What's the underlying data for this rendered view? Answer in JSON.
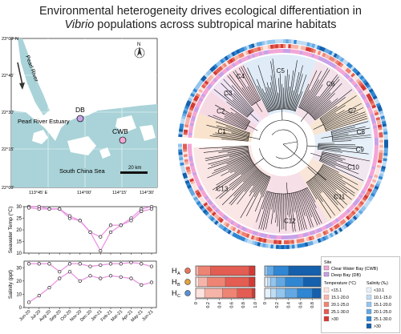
{
  "title": {
    "line1": "Environmental heterogeneity drives ecological differentiation in",
    "line2_italic": "Vibrio",
    "line2_rest": " populations across subtropical marine habitats"
  },
  "map": {
    "river_label": "Pearl River",
    "estuary_label": "Pearl River Estuary",
    "sea_label": "South China Sea",
    "north_label": "N",
    "scale_label": "20 km",
    "lat_labels": [
      "23°00' N",
      "22°45'",
      "22°30'",
      "22°15'",
      "22°00'"
    ],
    "lon_labels": [
      "113°45' E",
      "114°00'",
      "114°15'",
      "114°30'"
    ],
    "sites": [
      {
        "code": "DB",
        "color": "#c8a2e8"
      },
      {
        "code": "CWB",
        "color": "#f3a6d7"
      }
    ]
  },
  "chart_data": [
    {
      "type": "scatter",
      "ylabel": "Seawater Temp (°C)",
      "ylim": [
        10,
        30
      ],
      "yticks": [
        "10",
        "15",
        "20",
        "25",
        "30"
      ],
      "categories": [
        "Jun-20",
        "Jul-20",
        "Aug-20",
        "Sep-20",
        "Oct-20",
        "Nov-20",
        "Dec-20",
        "Jan-21",
        "Feb-21",
        "Mar-21",
        "Apr-21",
        "May-21",
        "Jun-21"
      ],
      "series": [
        {
          "values": [
            30,
            30,
            29,
            29,
            25,
            24,
            19,
            17,
            22,
            22,
            25,
            29,
            30
          ]
        },
        {
          "values": [
            29.5,
            29,
            29,
            29,
            26,
            24,
            19,
            11,
            19,
            22,
            24,
            28,
            29
          ]
        }
      ],
      "line_color": "#e98be0"
    },
    {
      "type": "scatter",
      "ylabel": "Salinity (ppt)",
      "ylim": [
        0,
        35
      ],
      "yticks": [
        "0",
        "10",
        "20",
        "30"
      ],
      "categories": [
        "Jun-20",
        "Jul-20",
        "Aug-20",
        "Sep-20",
        "Oct-20",
        "Nov-20",
        "Dec-20",
        "Jan-21",
        "Feb-21",
        "Mar-21",
        "Apr-21",
        "May-21",
        "Jun-21"
      ],
      "series": [
        {
          "values": [
            33,
            33,
            33,
            27,
            33,
            33,
            31,
            32,
            33,
            33,
            34,
            33,
            31
          ]
        },
        {
          "values": [
            4,
            9,
            15,
            22,
            27,
            20,
            24,
            22,
            24,
            23,
            22,
            17,
            19
          ]
        }
      ],
      "line_color": "#e98be0"
    },
    {
      "type": "bar",
      "categories": [
        "HA",
        "HB",
        "HC"
      ],
      "category_subscripts": [
        "A",
        "B",
        "C"
      ],
      "category_colors": [
        "#e8765a",
        "#e3a23b",
        "#5b8fd6"
      ],
      "xticks": [
        "0",
        "0.2",
        "0.4",
        "0.6",
        "0.8",
        "1.0"
      ],
      "temperature": {
        "classes": [
          "<15.1",
          "15.1-20.0",
          "20.1-25.0",
          "25.1-30.0",
          ">30"
        ],
        "colors": [
          "#fde3de",
          "#f6b4a8",
          "#ee8474",
          "#e35d52",
          "#d33a34"
        ],
        "values": [
          [
            0.0,
            0.05,
            0.2,
            0.65,
            0.1
          ],
          [
            0.05,
            0.15,
            0.3,
            0.4,
            0.1
          ],
          [
            0.15,
            0.3,
            0.25,
            0.25,
            0.05
          ]
        ]
      },
      "salinity": {
        "classes": [
          "<10.1",
          "10.1-15.0",
          "15.1-20.0",
          "20.1-25.0",
          "25.1-30.0",
          ">30"
        ],
        "colors": [
          "#e6f1fb",
          "#bfdcf4",
          "#93c5ee",
          "#63a8e3",
          "#2f86d3",
          "#1460ad"
        ],
        "values": [
          [
            0.0,
            0.0,
            0.05,
            0.1,
            0.25,
            0.6
          ],
          [
            0.05,
            0.05,
            0.1,
            0.15,
            0.3,
            0.35
          ],
          [
            0.1,
            0.1,
            0.15,
            0.2,
            0.25,
            0.2
          ]
        ]
      }
    }
  ],
  "tree": {
    "clades": [
      "C1",
      "C2",
      "C3",
      "C4",
      "C5",
      "C6",
      "C7",
      "C8",
      "C9",
      "C10",
      "C11",
      "C12",
      "C13"
    ]
  },
  "legend": {
    "site_title": "Site",
    "sites": [
      {
        "label": "Clear Water Bay (CWB)",
        "color": "#f3a6d7"
      },
      {
        "label": "Deep Bay (DB)",
        "color": "#c8a2e8"
      }
    ],
    "temp_title": "Temperature (°C)",
    "sal_title": "Salinity (‰)",
    "temp_labels": [
      "<15.1",
      "15.1-20.0",
      "20.1-25.0",
      "25.1-30.0",
      ">30"
    ],
    "sal_labels": [
      "<10.1",
      "10.1-15.0",
      "15.1-20.0",
      "20.1-25.0",
      "25.1-30.0",
      ">30"
    ]
  }
}
